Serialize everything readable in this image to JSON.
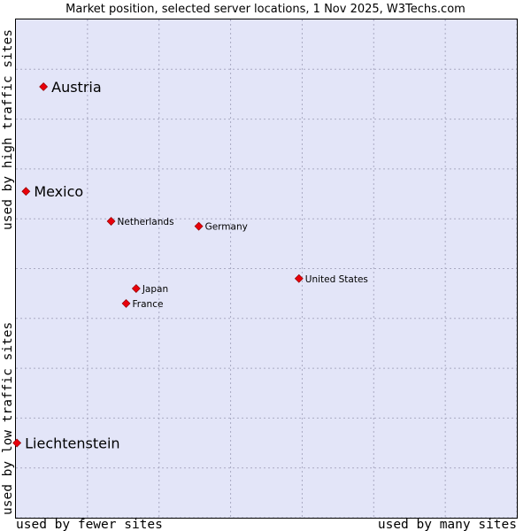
{
  "chart_data": {
    "type": "scatter",
    "title": "Market position, selected server locations, 1 Nov 2025, W3Techs.com",
    "xlabel_left": "used by fewer sites",
    "xlabel_right": "used by many sites",
    "ylabel_top": "used by high traffic sites",
    "ylabel_bottom": "used by low traffic sites",
    "xlim": [
      0,
      100
    ],
    "ylim": [
      0,
      100
    ],
    "grid": true,
    "colors": {
      "plot_background": "#e3e5f8",
      "grid": "#a9aac2",
      "point": "#e8000b",
      "point_stroke": "#8a0000"
    },
    "points": [
      {
        "label": "Austria",
        "x": 5.5,
        "y": 86.5,
        "highlight": true
      },
      {
        "label": "Mexico",
        "x": 2.0,
        "y": 65.5,
        "highlight": true
      },
      {
        "label": "Netherlands",
        "x": 19.0,
        "y": 59.5,
        "highlight": false
      },
      {
        "label": "Germany",
        "x": 36.5,
        "y": 58.5,
        "highlight": false
      },
      {
        "label": "United States",
        "x": 56.5,
        "y": 48.0,
        "highlight": false
      },
      {
        "label": "Japan",
        "x": 24.0,
        "y": 46.0,
        "highlight": false
      },
      {
        "label": "France",
        "x": 22.0,
        "y": 43.0,
        "highlight": false
      },
      {
        "label": "Liechtenstein",
        "x": 0.2,
        "y": 15.0,
        "highlight": true
      }
    ]
  }
}
